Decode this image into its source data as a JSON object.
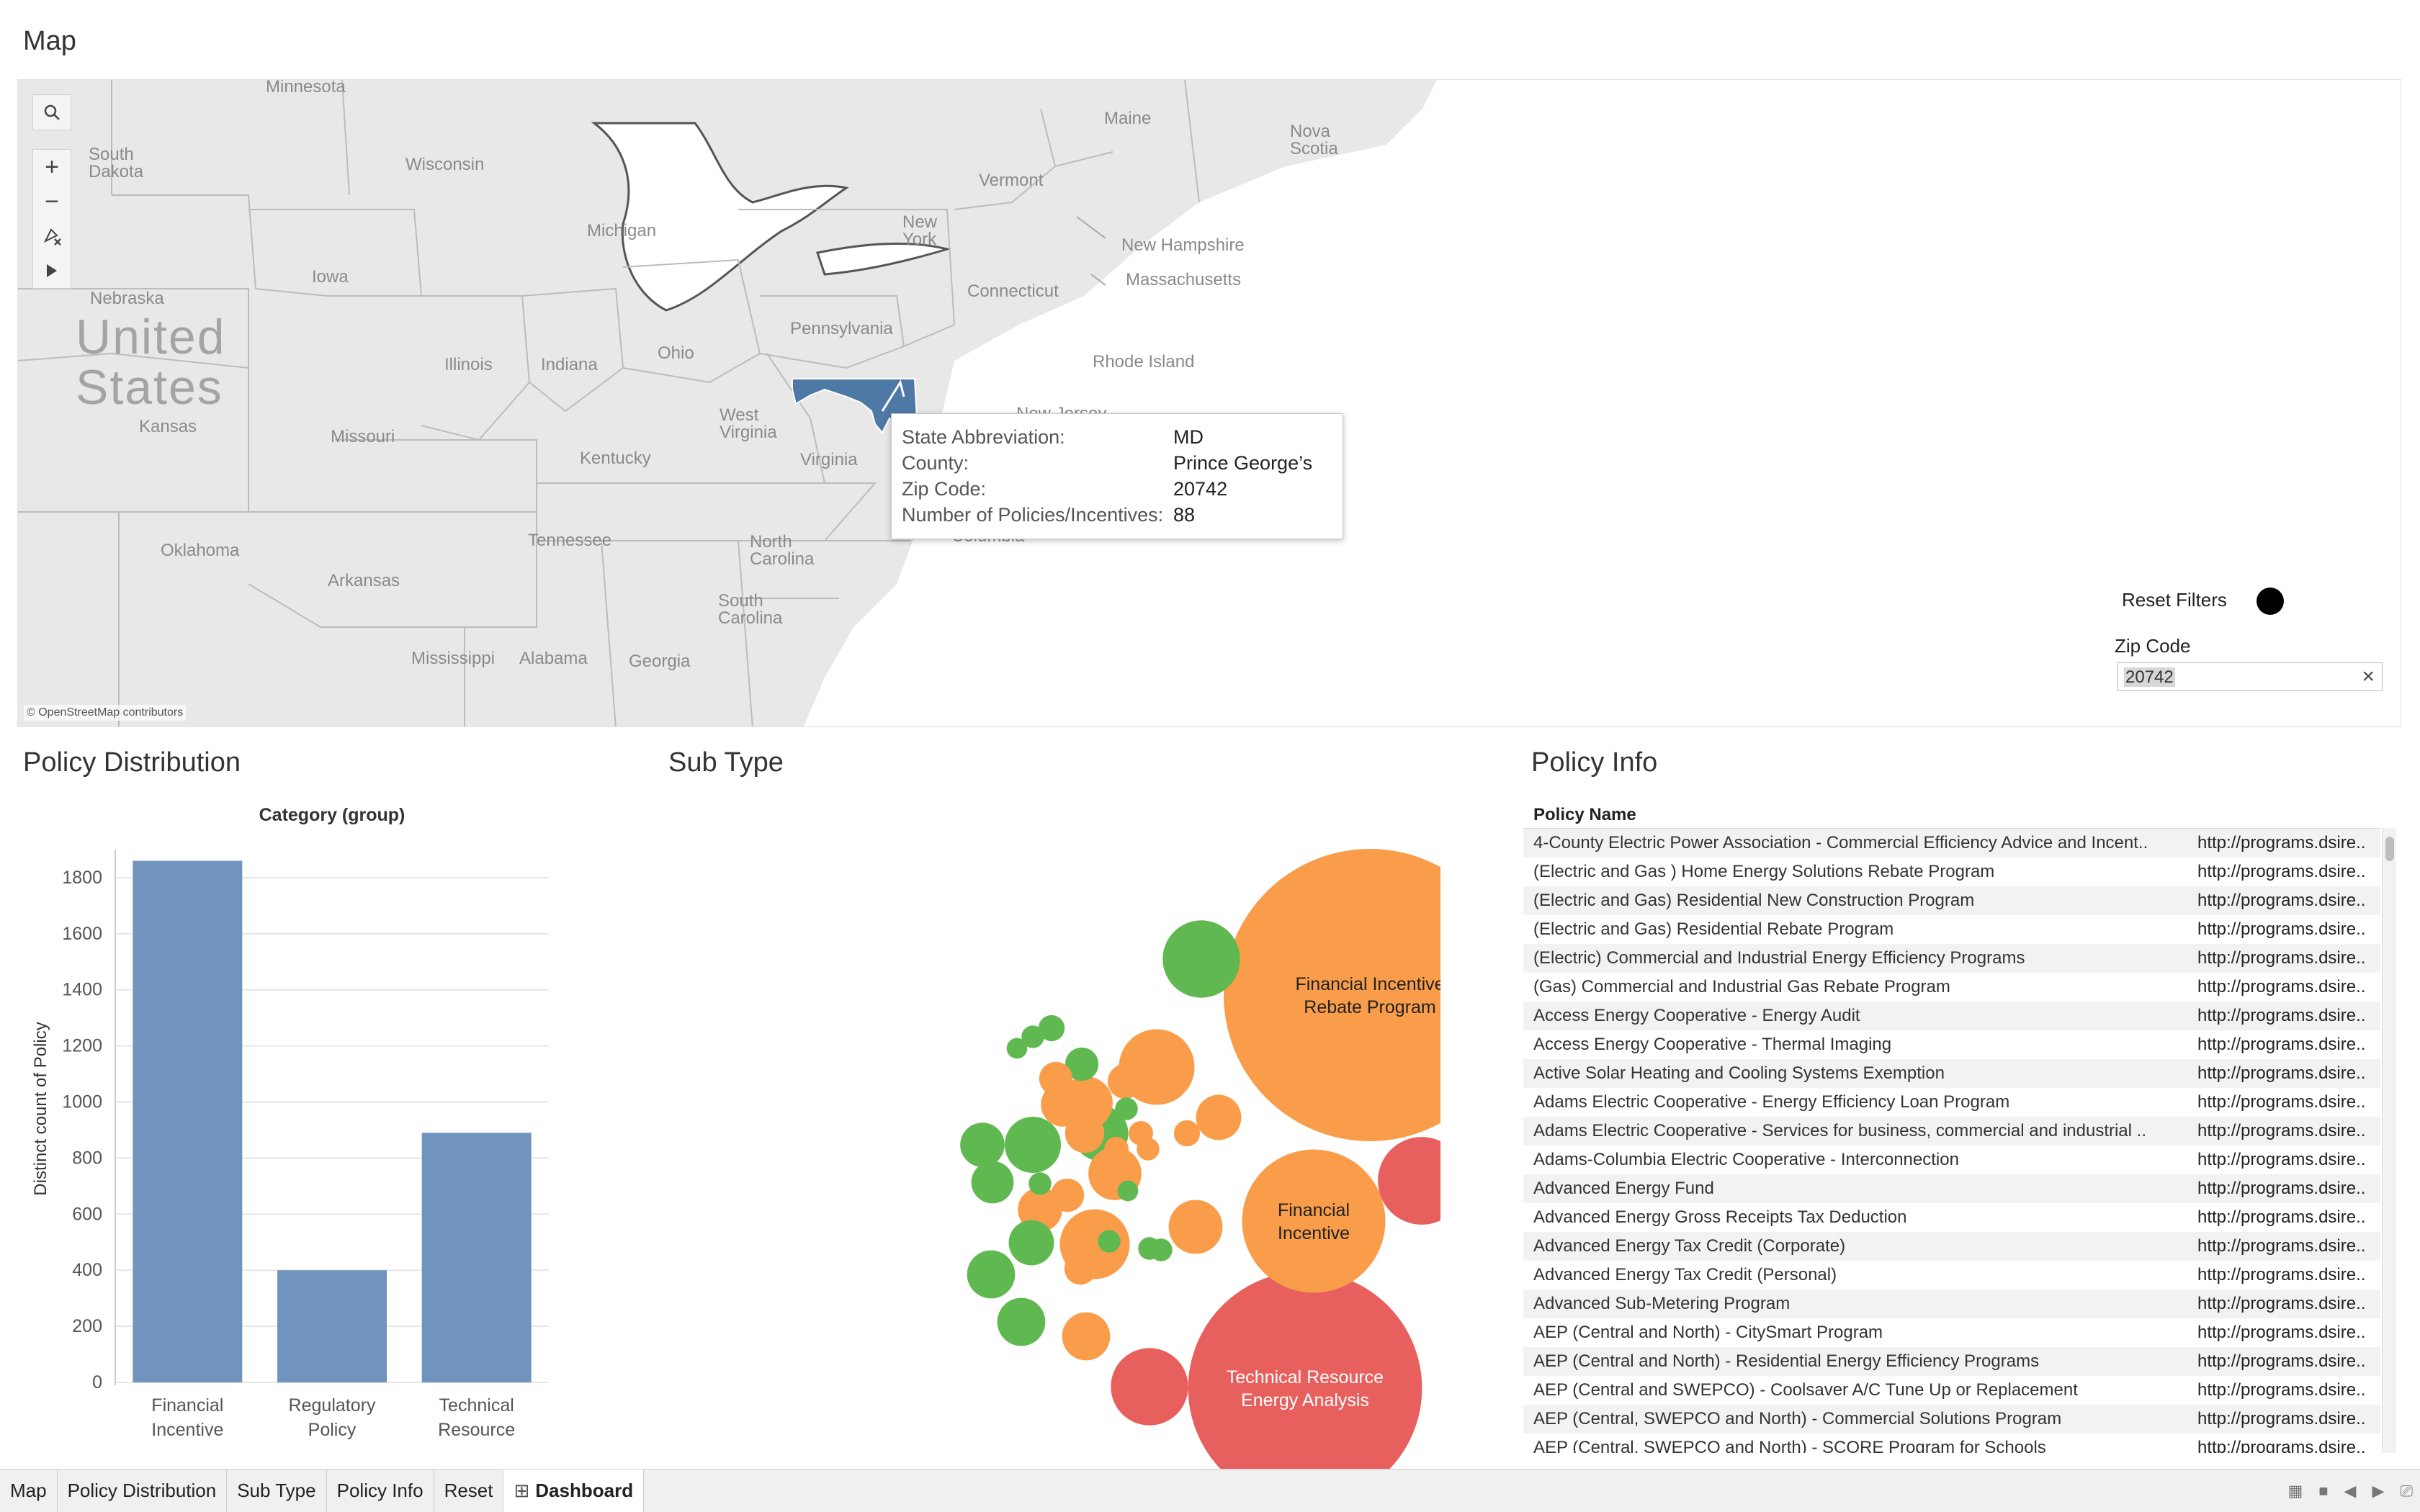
{
  "sections": {
    "map": "Map",
    "policy_distribution": "Policy Distribution",
    "sub_type": "Sub Type",
    "policy_info": "Policy Info"
  },
  "map": {
    "labels": {
      "minnesota": "Minnesota",
      "south_dakota": "South\nDakota",
      "wisconsin": "Wisconsin",
      "michigan": "Michigan",
      "maine": "Maine",
      "nova_scotia": "Nova\nScotia",
      "vermont": "Vermont",
      "new_york": "New\nYork",
      "new_hampshire": "New Hampshire",
      "massachusetts": "Massachusetts",
      "connecticut": "Connecticut",
      "rhode_island": "Rhode Island",
      "iowa": "Iowa",
      "nebraska": "Nebraska",
      "united_states": "United\nStates",
      "kansas": "Kansas",
      "illinois": "Illinois",
      "indiana": "Indiana",
      "ohio": "Ohio",
      "pennsylvania": "Pennsylvania",
      "new_jersey": "New Jersey",
      "west_virginia": "West\nVirginia",
      "virginia": "Virginia",
      "kentucky": "Kentucky",
      "missouri": "Missouri",
      "oklahoma": "Oklahoma",
      "arkansas": "Arkansas",
      "tennessee": "Tennessee",
      "north_carolina": "North\nCarolina",
      "south_carolina": "South\nCarolina",
      "mississippi": "Mississippi",
      "alabama": "Alabama",
      "georgia": "Georgia",
      "columbia": "Columbia"
    },
    "attribution": "© OpenStreetMap contributors",
    "highlight_color": "#4e79a7",
    "tooltip": {
      "rows": [
        {
          "key": "State Abbreviation:",
          "value": "MD"
        },
        {
          "key": "County:",
          "value": "Prince George’s"
        },
        {
          "key": "Zip Code:",
          "value": "20742"
        },
        {
          "key": "Number of Policies/Incentives:",
          "value": "88"
        }
      ]
    },
    "toolbar": [
      "search-icon",
      "zoom-in-icon",
      "zoom-out-icon",
      "pin-clear-icon",
      "play-icon"
    ]
  },
  "filters": {
    "reset_label": "Reset Filters",
    "zip_label": "Zip Code",
    "zip_value": "20742"
  },
  "chart_data": [
    {
      "type": "bar",
      "title": "Category (group)",
      "ylabel": "Distinct count of Policy",
      "categories": [
        "Financial\nIncentive",
        "Regulatory\nPolicy",
        "Technical\nResource"
      ],
      "values": [
        1860,
        400,
        890
      ],
      "ylim": [
        0,
        1900
      ],
      "yticks": [
        0,
        200,
        400,
        600,
        800,
        1000,
        1200,
        1400,
        1600,
        1800
      ],
      "color": "#7094bd",
      "grid": true
    },
    {
      "type": "bubble",
      "colors": {
        "orange": "#f99d4a",
        "green": "#5fb950",
        "red": "#e8605e"
      },
      "bubbles": [
        {
          "label": "Financial Incentive\nRebate Program",
          "size": 100,
          "color": "orange"
        },
        {
          "label": "Technical Resource\nEnergy Analysis",
          "size": 64,
          "color": "red"
        },
        {
          "label": "Financial\nIncentive",
          "size": 24,
          "color": "orange"
        },
        {
          "label": "",
          "size": 9,
          "color": "red"
        },
        {
          "label": "",
          "size": 7,
          "color": "green"
        },
        {
          "label": "",
          "size": 7,
          "color": "red"
        },
        {
          "label": "",
          "size": 6.7,
          "color": "orange"
        },
        {
          "label": "",
          "size": 5.7,
          "color": "orange"
        },
        {
          "label": "",
          "size": 3.6,
          "color": "green"
        },
        {
          "label": "",
          "size": 3.7,
          "color": "green"
        },
        {
          "label": "",
          "size": 3.3,
          "color": "orange"
        },
        {
          "label": "",
          "size": 3.3,
          "color": "orange"
        },
        {
          "label": "",
          "size": 3.4,
          "color": "orange"
        },
        {
          "label": "",
          "size": 2.3,
          "color": "green"
        },
        {
          "label": "",
          "size": 2.7,
          "color": "green"
        },
        {
          "label": "",
          "size": 2.7,
          "color": "orange"
        },
        {
          "label": "",
          "size": 2.3,
          "color": "orange"
        },
        {
          "label": "",
          "size": 2.7,
          "color": "green"
        },
        {
          "label": "",
          "size": 2.1,
          "color": "green"
        },
        {
          "label": "",
          "size": 2.3,
          "color": "orange"
        },
        {
          "label": "",
          "size": 2.4,
          "color": "green"
        },
        {
          "label": "",
          "size": 2.4,
          "color": "orange"
        },
        {
          "label": "",
          "size": 1.4,
          "color": "orange"
        },
        {
          "label": "",
          "size": 1.8,
          "color": "orange"
        },
        {
          "label": "",
          "size": 1.3,
          "color": "green"
        },
        {
          "label": "",
          "size": 1.5,
          "color": "orange"
        },
        {
          "label": "",
          "size": 1.3,
          "color": "orange"
        },
        {
          "label": "",
          "size": 0.8,
          "color": "orange"
        },
        {
          "label": "",
          "size": 0.7,
          "color": "orange"
        },
        {
          "label": "",
          "size": 0.6,
          "color": "orange"
        },
        {
          "label": "",
          "size": 0.6,
          "color": "green"
        },
        {
          "label": "",
          "size": 0.5,
          "color": "green"
        },
        {
          "label": "",
          "size": 0.8,
          "color": "green"
        },
        {
          "label": "",
          "size": 0.6,
          "color": "green"
        },
        {
          "label": "",
          "size": 0.5,
          "color": "green"
        },
        {
          "label": "",
          "size": 0.6,
          "color": "green"
        },
        {
          "label": "",
          "size": 0.6,
          "color": "green"
        },
        {
          "label": "",
          "size": 0.6,
          "color": "green"
        },
        {
          "label": "",
          "size": 1.3,
          "color": "orange"
        },
        {
          "label": "",
          "size": 1.2,
          "color": "orange"
        },
        {
          "label": "",
          "size": 0.7,
          "color": "orange"
        },
        {
          "label": "",
          "size": 0.6,
          "color": "green"
        }
      ]
    }
  ],
  "table": {
    "header": "Policy Name",
    "rows": [
      {
        "name": "4-County Electric Power Association - Commercial Efficiency Advice and Incent..",
        "url": "http://programs.dsire.."
      },
      {
        "name": "(Electric and Gas ) Home Energy Solutions Rebate Program",
        "url": "http://programs.dsire.."
      },
      {
        "name": "(Electric and Gas) Residential New Construction Program",
        "url": "http://programs.dsire.."
      },
      {
        "name": "(Electric and Gas) Residential Rebate Program",
        "url": "http://programs.dsire.."
      },
      {
        "name": "(Electric) Commercial and Industrial Energy Efficiency Programs",
        "url": "http://programs.dsire.."
      },
      {
        "name": "(Gas) Commercial and Industrial Gas Rebate Program",
        "url": "http://programs.dsire.."
      },
      {
        "name": "Access Energy Cooperative - Energy Audit",
        "url": "http://programs.dsire.."
      },
      {
        "name": "Access Energy Cooperative - Thermal Imaging",
        "url": "http://programs.dsire.."
      },
      {
        "name": "Active Solar Heating and Cooling Systems Exemption",
        "url": "http://programs.dsire.."
      },
      {
        "name": "Adams Electric Cooperative - Energy Efficiency Loan Program",
        "url": "http://programs.dsire.."
      },
      {
        "name": "Adams Electric Cooperative - Services for business, commercial and industrial ..",
        "url": "http://programs.dsire.."
      },
      {
        "name": "Adams-Columbia Electric Cooperative - Interconnection",
        "url": "http://programs.dsire.."
      },
      {
        "name": "Advanced Energy Fund",
        "url": "http://programs.dsire.."
      },
      {
        "name": "Advanced Energy Gross Receipts Tax Deduction",
        "url": "http://programs.dsire.."
      },
      {
        "name": "Advanced Energy Tax Credit (Corporate)",
        "url": "http://programs.dsire.."
      },
      {
        "name": "Advanced Energy Tax Credit (Personal)",
        "url": "http://programs.dsire.."
      },
      {
        "name": "Advanced Sub-Metering Program",
        "url": "http://programs.dsire.."
      },
      {
        "name": "AEP (Central and North) - CitySmart Program",
        "url": "http://programs.dsire.."
      },
      {
        "name": "AEP (Central and North) - Residential Energy Efficiency Programs",
        "url": "http://programs.dsire.."
      },
      {
        "name": "AEP (Central and SWEPCO) - Coolsaver A/C Tune Up or Replacement",
        "url": "http://programs.dsire.."
      },
      {
        "name": "AEP (Central, SWEPCO and North) - Commercial Solutions Program",
        "url": "http://programs.dsire.."
      },
      {
        "name": "AEP (Central, SWEPCO and North) - SCORE Program for Schools",
        "url": "http://programs.dsire.."
      }
    ]
  },
  "tabs": [
    {
      "label": "Map",
      "active": false
    },
    {
      "label": "Policy Distribution",
      "active": false
    },
    {
      "label": "Sub Type",
      "active": false
    },
    {
      "label": "Policy Info",
      "active": false
    },
    {
      "label": "Reset",
      "active": false
    },
    {
      "label": "Dashboard",
      "active": true
    }
  ]
}
